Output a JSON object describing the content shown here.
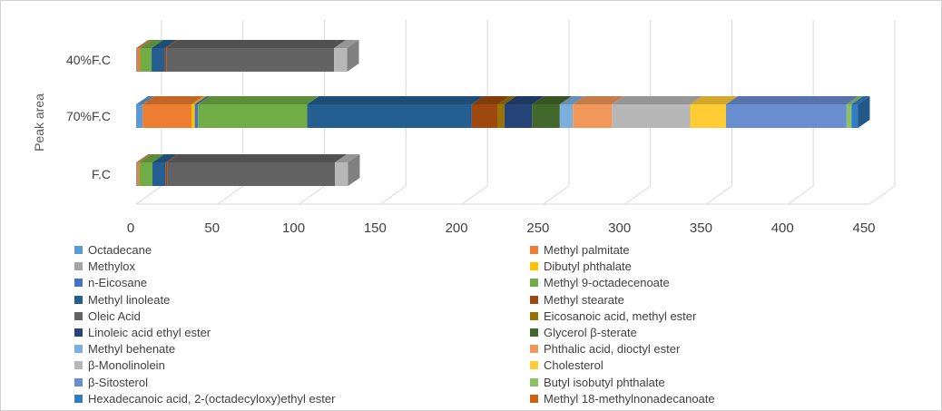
{
  "chart_data": {
    "type": "bar",
    "orientation": "horizontal",
    "stacked": true,
    "style_3d": true,
    "ylabel": "Peak area",
    "xlim": [
      0,
      450
    ],
    "x_ticks": [
      "0",
      "50",
      "100",
      "150",
      "200",
      "250",
      "300",
      "350",
      "400",
      "450"
    ],
    "grid": true,
    "legend_position": "bottom",
    "categories": [
      "F.C",
      "70%F.C",
      "40%F.C"
    ],
    "series": [
      {
        "name": "Octadecane",
        "color": "#5b9bd5",
        "values": [
          0.5,
          4.0,
          0.5
        ]
      },
      {
        "name": "Methyl palmitate",
        "color": "#ed7d31",
        "values": [
          1.5,
          30.0,
          2.0
        ]
      },
      {
        "name": "Methylox",
        "color": "#a5a5a5",
        "values": [
          0.0,
          0.0,
          0.0
        ]
      },
      {
        "name": "Dibutyl phthalate",
        "color": "#ffc000",
        "values": [
          0.0,
          2.0,
          0.0
        ]
      },
      {
        "name": "n-Eicosane",
        "color": "#4472c4",
        "values": [
          0.0,
          2.0,
          0.0
        ]
      },
      {
        "name": "Methyl 9-octadecenoate",
        "color": "#70ad47",
        "values": [
          8.0,
          67.0,
          7.0
        ]
      },
      {
        "name": "Methyl linoleate",
        "color": "#255e91",
        "values": [
          8.0,
          101.0,
          8.0
        ]
      },
      {
        "name": "Methyl stearate",
        "color": "#9e480e",
        "values": [
          1.0,
          16.0,
          1.0
        ]
      },
      {
        "name": "Oleic Acid",
        "color": "#636363",
        "values": [
          103.0,
          0.0,
          103.0
        ]
      },
      {
        "name": "Eicosanoic acid, methyl ester",
        "color": "#997300",
        "values": [
          0.0,
          4.0,
          0.0
        ]
      },
      {
        "name": "Linoleic acid ethyl ester",
        "color": "#264478",
        "values": [
          0.0,
          17.0,
          0.0
        ]
      },
      {
        "name": "Glycerol β-sterate",
        "color": "#43682b",
        "values": [
          0.0,
          17.0,
          0.0
        ]
      },
      {
        "name": "Methyl behenate",
        "color": "#7cafdd",
        "values": [
          0.0,
          8.0,
          0.0
        ]
      },
      {
        "name": "Phthalic acid, dioctyl ester",
        "color": "#f1975a",
        "values": [
          0.0,
          24.0,
          0.0
        ]
      },
      {
        "name": "β-Monolinolein",
        "color": "#b7b7b7",
        "values": [
          8.0,
          48.0,
          8.0
        ]
      },
      {
        "name": "Cholesterol",
        "color": "#ffcd33",
        "values": [
          0.0,
          22.0,
          0.0
        ]
      },
      {
        "name": "β-Sitosterol",
        "color": "#698ed0",
        "values": [
          0.0,
          74.0,
          0.0
        ]
      },
      {
        "name": "Butyl isobutyl phthalate",
        "color": "#8cc168",
        "values": [
          0.0,
          3.0,
          0.0
        ]
      },
      {
        "name": "Hexadecanoic acid, 2-(octadecyloxy)ethyl ester",
        "color": "#327dc2",
        "values": [
          0.0,
          4.0,
          0.0
        ]
      },
      {
        "name": "Methyl 18-methylnonadecanoate",
        "color": "#d26012",
        "values": [
          0.0,
          0.0,
          0.0
        ]
      }
    ]
  }
}
